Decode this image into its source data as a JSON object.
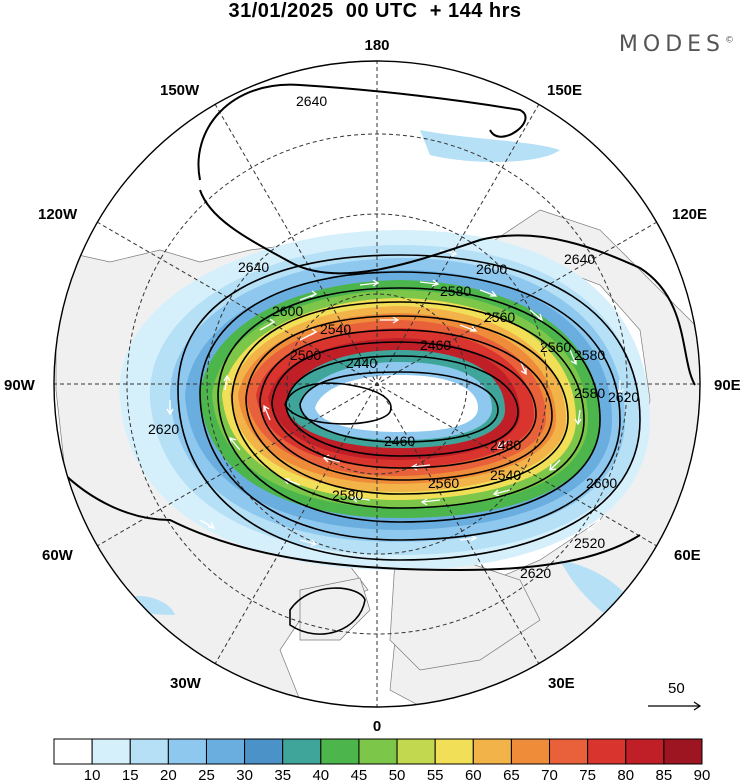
{
  "title": "31/01/2025  00 UTC  + 144 hrs",
  "brand": "MODES",
  "brand_mark": "©",
  "longitude_labels": {
    "top": "180",
    "bottom": "0",
    "left": "90W",
    "right": "90E",
    "upper_left_1": "150W",
    "upper_left_2": "120W",
    "upper_right_1": "150E",
    "upper_right_2": "120E",
    "lower_left_1": "60W",
    "lower_left_2": "30W",
    "lower_right_1": "60E",
    "lower_right_2": "30E"
  },
  "contour_labels": [
    "2640",
    "2640",
    "2640",
    "2600",
    "2600",
    "2580",
    "2560",
    "2540",
    "2500",
    "2460",
    "2440",
    "2460",
    "2480",
    "2560",
    "2540",
    "2580",
    "2620",
    "2600",
    "2620",
    "2620",
    "2520",
    "2580",
    "2560",
    "2580"
  ],
  "reference_vector": "50",
  "colorbar": {
    "ticks": [
      "10",
      "15",
      "20",
      "25",
      "30",
      "35",
      "40",
      "45",
      "50",
      "55",
      "60",
      "65",
      "70",
      "75",
      "80",
      "85",
      "90"
    ],
    "colors": [
      "#ffffff",
      "#d6f0fb",
      "#b6e0f6",
      "#8ec8ee",
      "#6aaedf",
      "#4a92c8",
      "#3fa59a",
      "#4cb64c",
      "#7cc64a",
      "#c2d84e",
      "#f2df58",
      "#f2b449",
      "#ee8c3a",
      "#e8613a",
      "#d9352e",
      "#c01f28",
      "#9d1520"
    ]
  }
}
